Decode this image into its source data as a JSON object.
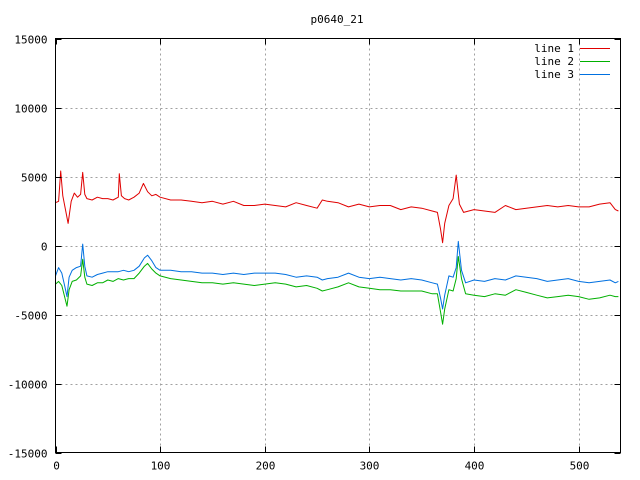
{
  "chart_data": {
    "type": "line",
    "title": "p0640_21",
    "xlabel": "",
    "ylabel": "",
    "xlim": [
      0,
      540
    ],
    "ylim": [
      -15000,
      15000
    ],
    "x_ticks": [
      0,
      100,
      200,
      300,
      400,
      500
    ],
    "y_ticks": [
      -15000,
      -10000,
      -5000,
      0,
      5000,
      10000,
      15000
    ],
    "grid": true,
    "legend_position": "top-right",
    "series": [
      {
        "name": "line 1",
        "color": "#e00000",
        "points": [
          [
            0,
            3100
          ],
          [
            3,
            3200
          ],
          [
            5,
            5400
          ],
          [
            7,
            3600
          ],
          [
            10,
            2400
          ],
          [
            12,
            1600
          ],
          [
            15,
            3200
          ],
          [
            18,
            3800
          ],
          [
            21,
            3500
          ],
          [
            24,
            3700
          ],
          [
            26,
            5300
          ],
          [
            28,
            3700
          ],
          [
            30,
            3400
          ],
          [
            35,
            3300
          ],
          [
            40,
            3500
          ],
          [
            45,
            3400
          ],
          [
            50,
            3400
          ],
          [
            55,
            3300
          ],
          [
            60,
            3500
          ],
          [
            61,
            5200
          ],
          [
            63,
            3600
          ],
          [
            66,
            3400
          ],
          [
            70,
            3300
          ],
          [
            75,
            3500
          ],
          [
            80,
            3800
          ],
          [
            84,
            4500
          ],
          [
            88,
            3900
          ],
          [
            92,
            3600
          ],
          [
            96,
            3700
          ],
          [
            100,
            3500
          ],
          [
            110,
            3300
          ],
          [
            120,
            3300
          ],
          [
            130,
            3200
          ],
          [
            140,
            3100
          ],
          [
            150,
            3200
          ],
          [
            160,
            3000
          ],
          [
            170,
            3200
          ],
          [
            180,
            2900
          ],
          [
            190,
            2900
          ],
          [
            200,
            3000
          ],
          [
            210,
            2900
          ],
          [
            220,
            2800
          ],
          [
            230,
            3100
          ],
          [
            240,
            2900
          ],
          [
            250,
            2700
          ],
          [
            255,
            3300
          ],
          [
            260,
            3200
          ],
          [
            270,
            3100
          ],
          [
            280,
            2800
          ],
          [
            290,
            3000
          ],
          [
            300,
            2800
          ],
          [
            310,
            2900
          ],
          [
            320,
            2900
          ],
          [
            330,
            2600
          ],
          [
            340,
            2800
          ],
          [
            350,
            2700
          ],
          [
            360,
            2500
          ],
          [
            365,
            2400
          ],
          [
            368,
            1200
          ],
          [
            370,
            200
          ],
          [
            372,
            1600
          ],
          [
            376,
            2900
          ],
          [
            380,
            3400
          ],
          [
            383,
            5100
          ],
          [
            386,
            3000
          ],
          [
            390,
            2400
          ],
          [
            400,
            2600
          ],
          [
            410,
            2500
          ],
          [
            420,
            2400
          ],
          [
            430,
            2900
          ],
          [
            440,
            2600
          ],
          [
            450,
            2700
          ],
          [
            460,
            2800
          ],
          [
            470,
            2900
          ],
          [
            480,
            2800
          ],
          [
            490,
            2900
          ],
          [
            500,
            2800
          ],
          [
            510,
            2800
          ],
          [
            520,
            3000
          ],
          [
            530,
            3100
          ],
          [
            535,
            2600
          ],
          [
            538,
            2500
          ]
        ]
      },
      {
        "name": "line 2",
        "color": "#00b000",
        "points": [
          [
            0,
            -2800
          ],
          [
            3,
            -2600
          ],
          [
            6,
            -2900
          ],
          [
            9,
            -3800
          ],
          [
            11,
            -4400
          ],
          [
            13,
            -3200
          ],
          [
            16,
            -2600
          ],
          [
            20,
            -2500
          ],
          [
            24,
            -2200
          ],
          [
            26,
            -1000
          ],
          [
            28,
            -2300
          ],
          [
            30,
            -2800
          ],
          [
            35,
            -2900
          ],
          [
            40,
            -2700
          ],
          [
            45,
            -2700
          ],
          [
            50,
            -2500
          ],
          [
            55,
            -2600
          ],
          [
            60,
            -2400
          ],
          [
            65,
            -2500
          ],
          [
            70,
            -2400
          ],
          [
            75,
            -2400
          ],
          [
            80,
            -2000
          ],
          [
            85,
            -1500
          ],
          [
            88,
            -1300
          ],
          [
            92,
            -1700
          ],
          [
            96,
            -2000
          ],
          [
            100,
            -2200
          ],
          [
            110,
            -2400
          ],
          [
            120,
            -2500
          ],
          [
            130,
            -2600
          ],
          [
            140,
            -2700
          ],
          [
            150,
            -2700
          ],
          [
            160,
            -2800
          ],
          [
            170,
            -2700
          ],
          [
            180,
            -2800
          ],
          [
            190,
            -2900
          ],
          [
            200,
            -2800
          ],
          [
            210,
            -2700
          ],
          [
            220,
            -2800
          ],
          [
            230,
            -3000
          ],
          [
            240,
            -2900
          ],
          [
            250,
            -3100
          ],
          [
            255,
            -3300
          ],
          [
            260,
            -3200
          ],
          [
            270,
            -3000
          ],
          [
            280,
            -2700
          ],
          [
            290,
            -3000
          ],
          [
            300,
            -3100
          ],
          [
            310,
            -3200
          ],
          [
            320,
            -3200
          ],
          [
            330,
            -3300
          ],
          [
            340,
            -3300
          ],
          [
            350,
            -3300
          ],
          [
            360,
            -3500
          ],
          [
            365,
            -3500
          ],
          [
            368,
            -4800
          ],
          [
            370,
            -5700
          ],
          [
            372,
            -4600
          ],
          [
            376,
            -3200
          ],
          [
            380,
            -3300
          ],
          [
            383,
            -2400
          ],
          [
            385,
            -800
          ],
          [
            388,
            -2400
          ],
          [
            392,
            -3500
          ],
          [
            400,
            -3600
          ],
          [
            410,
            -3700
          ],
          [
            420,
            -3500
          ],
          [
            430,
            -3600
          ],
          [
            440,
            -3200
          ],
          [
            450,
            -3400
          ],
          [
            460,
            -3600
          ],
          [
            470,
            -3800
          ],
          [
            480,
            -3700
          ],
          [
            490,
            -3600
          ],
          [
            500,
            -3700
          ],
          [
            510,
            -3900
          ],
          [
            520,
            -3800
          ],
          [
            530,
            -3600
          ],
          [
            535,
            -3700
          ],
          [
            538,
            -3700
          ]
        ]
      },
      {
        "name": "line 3",
        "color": "#0070e0",
        "points": [
          [
            0,
            -2200
          ],
          [
            3,
            -1600
          ],
          [
            6,
            -2000
          ],
          [
            9,
            -3000
          ],
          [
            11,
            -3700
          ],
          [
            13,
            -2300
          ],
          [
            16,
            -1800
          ],
          [
            20,
            -1600
          ],
          [
            24,
            -1500
          ],
          [
            26,
            100
          ],
          [
            28,
            -1500
          ],
          [
            30,
            -2200
          ],
          [
            35,
            -2300
          ],
          [
            40,
            -2100
          ],
          [
            45,
            -2000
          ],
          [
            50,
            -1900
          ],
          [
            55,
            -1900
          ],
          [
            60,
            -1900
          ],
          [
            65,
            -1800
          ],
          [
            70,
            -1900
          ],
          [
            75,
            -1800
          ],
          [
            80,
            -1500
          ],
          [
            85,
            -900
          ],
          [
            88,
            -700
          ],
          [
            92,
            -1100
          ],
          [
            96,
            -1600
          ],
          [
            100,
            -1800
          ],
          [
            110,
            -1800
          ],
          [
            120,
            -1900
          ],
          [
            130,
            -1900
          ],
          [
            140,
            -2000
          ],
          [
            150,
            -2000
          ],
          [
            160,
            -2100
          ],
          [
            170,
            -2000
          ],
          [
            180,
            -2100
          ],
          [
            190,
            -2000
          ],
          [
            200,
            -2000
          ],
          [
            210,
            -2000
          ],
          [
            220,
            -2100
          ],
          [
            230,
            -2300
          ],
          [
            240,
            -2200
          ],
          [
            250,
            -2300
          ],
          [
            255,
            -2500
          ],
          [
            260,
            -2400
          ],
          [
            270,
            -2300
          ],
          [
            280,
            -2000
          ],
          [
            290,
            -2300
          ],
          [
            300,
            -2400
          ],
          [
            310,
            -2300
          ],
          [
            320,
            -2400
          ],
          [
            330,
            -2500
          ],
          [
            340,
            -2400
          ],
          [
            350,
            -2500
          ],
          [
            360,
            -2700
          ],
          [
            365,
            -2800
          ],
          [
            368,
            -3800
          ],
          [
            370,
            -4600
          ],
          [
            372,
            -3600
          ],
          [
            376,
            -2200
          ],
          [
            380,
            -2300
          ],
          [
            383,
            -1600
          ],
          [
            385,
            300
          ],
          [
            388,
            -1800
          ],
          [
            392,
            -2700
          ],
          [
            400,
            -2500
          ],
          [
            410,
            -2600
          ],
          [
            420,
            -2400
          ],
          [
            430,
            -2500
          ],
          [
            440,
            -2200
          ],
          [
            450,
            -2300
          ],
          [
            460,
            -2400
          ],
          [
            470,
            -2600
          ],
          [
            480,
            -2500
          ],
          [
            490,
            -2400
          ],
          [
            500,
            -2600
          ],
          [
            510,
            -2700
          ],
          [
            520,
            -2600
          ],
          [
            530,
            -2500
          ],
          [
            535,
            -2700
          ],
          [
            538,
            -2600
          ]
        ]
      }
    ]
  }
}
